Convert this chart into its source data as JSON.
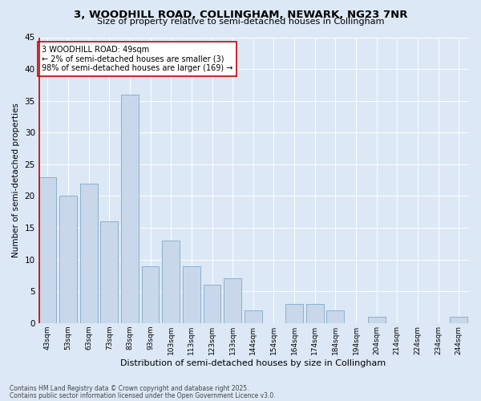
{
  "title": "3, WOODHILL ROAD, COLLINGHAM, NEWARK, NG23 7NR",
  "subtitle": "Size of property relative to semi-detached houses in Collingham",
  "xlabel": "Distribution of semi-detached houses by size in Collingham",
  "ylabel": "Number of semi-detached properties",
  "categories": [
    "43sqm",
    "53sqm",
    "63sqm",
    "73sqm",
    "83sqm",
    "93sqm",
    "103sqm",
    "113sqm",
    "123sqm",
    "133sqm",
    "144sqm",
    "154sqm",
    "164sqm",
    "174sqm",
    "184sqm",
    "194sqm",
    "204sqm",
    "214sqm",
    "224sqm",
    "234sqm",
    "244sqm"
  ],
  "values": [
    23,
    20,
    22,
    16,
    36,
    9,
    13,
    9,
    6,
    7,
    2,
    0,
    3,
    3,
    2,
    0,
    1,
    0,
    0,
    0,
    1
  ],
  "bar_color": "#c8d8ea",
  "bar_edge_color": "#8ab0cc",
  "highlight_line_color": "#cc0000",
  "annotation_text": "3 WOODHILL ROAD: 49sqm\n← 2% of semi-detached houses are smaller (3)\n98% of semi-detached houses are larger (169) →",
  "annotation_box_color": "#ffffff",
  "annotation_box_edge": "#cc0000",
  "background_color": "#dce8f5",
  "footer_line1": "Contains HM Land Registry data © Crown copyright and database right 2025.",
  "footer_line2": "Contains public sector information licensed under the Open Government Licence v3.0.",
  "ylim": [
    0,
    45
  ],
  "yticks": [
    0,
    5,
    10,
    15,
    20,
    25,
    30,
    35,
    40,
    45
  ]
}
